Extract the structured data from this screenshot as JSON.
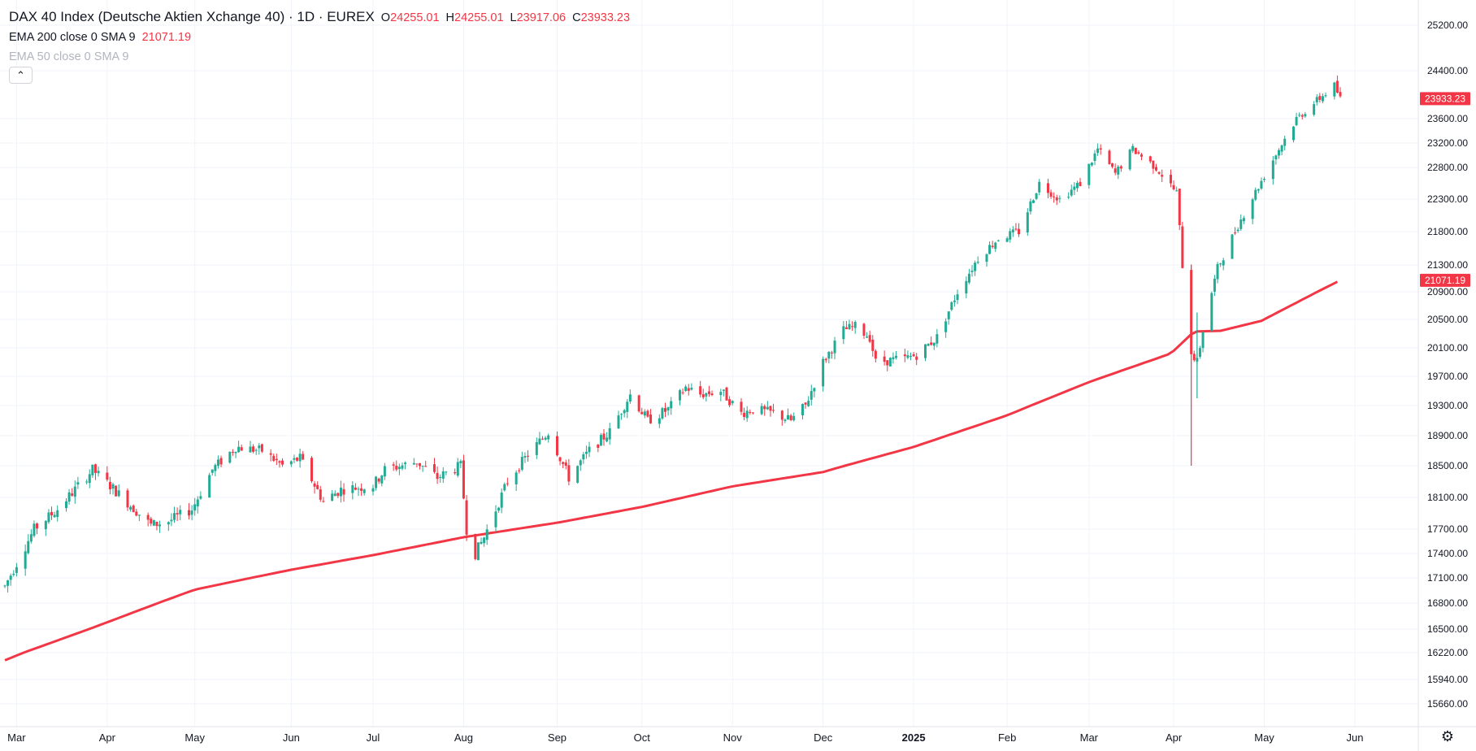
{
  "legend": {
    "title": "DAX 40 Index (Deutsche Aktien Xchange 40) · 1D · EUREX",
    "open_key": "O",
    "open": "24255.01",
    "high_key": "H",
    "high": "24255.01",
    "low_key": "L",
    "low": "23917.06",
    "close_key": "C",
    "close": "23933.23",
    "ema200_label": "EMA 200 close 0 SMA 9",
    "ema200_value": "21071.19",
    "ema50_label": "EMA 50 close 0 SMA 9",
    "collapse_icon": "chevron-up-icon"
  },
  "colors": {
    "up": "#22ab94",
    "down": "#f23645",
    "ema": "#f23645",
    "grid": "#f0f3fa",
    "text": "#131722"
  },
  "settings_icon": "gear-icon",
  "chart_data": {
    "type": "candlestick",
    "title": "DAX 40 Index (Deutsche Aktien Xchange 40) · 1D · EUREX",
    "ylim": [
      15400,
      25400
    ],
    "y_ticks": [
      "25200.00",
      "24400.00",
      "23600.00",
      "23200.00",
      "22800.00",
      "22300.00",
      "21800.00",
      "21300.00",
      "20900.00",
      "20500.00",
      "20100.00",
      "19700.00",
      "19300.00",
      "18900.00",
      "18500.00",
      "18100.00",
      "17700.00",
      "17400.00",
      "17100.00",
      "16800.00",
      "16500.00",
      "16220.00",
      "15940.00",
      "15660.00"
    ],
    "x_ticks": [
      "Mar",
      "Apr",
      "May",
      "Jun",
      "Jul",
      "Aug",
      "Sep",
      "Oct",
      "Nov",
      "Dec",
      "2025",
      "Feb",
      "Mar",
      "Apr",
      "May",
      "Jun"
    ],
    "price_badges": [
      {
        "label": "23933.23",
        "value": 23933.23
      },
      {
        "label": "21071.19",
        "value": 21071.19
      }
    ],
    "grid": true,
    "price_keyframes": [
      {
        "date": "2024-02-26",
        "value": 17000
      },
      {
        "date": "2024-03-07",
        "value": 17700
      },
      {
        "date": "2024-03-15",
        "value": 17950
      },
      {
        "date": "2024-03-27",
        "value": 18450
      },
      {
        "date": "2024-04-02",
        "value": 18250
      },
      {
        "date": "2024-04-16",
        "value": 17750
      },
      {
        "date": "2024-04-22",
        "value": 17800
      },
      {
        "date": "2024-04-30",
        "value": 17950
      },
      {
        "date": "2024-05-07",
        "value": 18450
      },
      {
        "date": "2024-05-15",
        "value": 18750
      },
      {
        "date": "2024-05-24",
        "value": 18700
      },
      {
        "date": "2024-05-31",
        "value": 18500
      },
      {
        "date": "2024-06-06",
        "value": 18600
      },
      {
        "date": "2024-06-14",
        "value": 18050
      },
      {
        "date": "2024-06-20",
        "value": 18200
      },
      {
        "date": "2024-07-01",
        "value": 18250
      },
      {
        "date": "2024-07-05",
        "value": 18450
      },
      {
        "date": "2024-07-16",
        "value": 18550
      },
      {
        "date": "2024-07-23",
        "value": 18350
      },
      {
        "date": "2024-07-31",
        "value": 18500
      },
      {
        "date": "2024-08-02",
        "value": 17700
      },
      {
        "date": "2024-08-05",
        "value": 17400
      },
      {
        "date": "2024-08-08",
        "value": 17600
      },
      {
        "date": "2024-08-16",
        "value": 18300
      },
      {
        "date": "2024-08-23",
        "value": 18650
      },
      {
        "date": "2024-08-30",
        "value": 18950
      },
      {
        "date": "2024-09-06",
        "value": 18350
      },
      {
        "date": "2024-09-13",
        "value": 18700
      },
      {
        "date": "2024-09-20",
        "value": 18950
      },
      {
        "date": "2024-09-27",
        "value": 19450
      },
      {
        "date": "2024-10-03",
        "value": 19100
      },
      {
        "date": "2024-10-10",
        "value": 19250
      },
      {
        "date": "2024-10-16",
        "value": 19550
      },
      {
        "date": "2024-10-21",
        "value": 19450
      },
      {
        "date": "2024-10-28",
        "value": 19500
      },
      {
        "date": "2024-11-04",
        "value": 19200
      },
      {
        "date": "2024-11-08",
        "value": 19250
      },
      {
        "date": "2024-11-15",
        "value": 19200
      },
      {
        "date": "2024-11-21",
        "value": 19100
      },
      {
        "date": "2024-11-26",
        "value": 19300
      },
      {
        "date": "2024-12-02",
        "value": 19900
      },
      {
        "date": "2024-12-09",
        "value": 20350
      },
      {
        "date": "2024-12-13",
        "value": 20400
      },
      {
        "date": "2024-12-18",
        "value": 20250
      },
      {
        "date": "2024-12-20",
        "value": 19900
      },
      {
        "date": "2024-12-30",
        "value": 19950
      },
      {
        "date": "2025-01-03",
        "value": 20000
      },
      {
        "date": "2025-01-10",
        "value": 20250
      },
      {
        "date": "2025-01-17",
        "value": 20900
      },
      {
        "date": "2025-01-24",
        "value": 21400
      },
      {
        "date": "2025-01-31",
        "value": 21700
      },
      {
        "date": "2025-02-07",
        "value": 21800
      },
      {
        "date": "2025-02-14",
        "value": 22550
      },
      {
        "date": "2025-02-21",
        "value": 22300
      },
      {
        "date": "2025-02-28",
        "value": 22550
      },
      {
        "date": "2025-03-06",
        "value": 23100
      },
      {
        "date": "2025-03-12",
        "value": 22700
      },
      {
        "date": "2025-03-18",
        "value": 23100
      },
      {
        "date": "2025-03-26",
        "value": 22800
      },
      {
        "date": "2025-04-02",
        "value": 22400
      },
      {
        "date": "2025-04-04",
        "value": 21300
      },
      {
        "date": "2025-04-07",
        "value": 20050
      },
      {
        "date": "2025-04-09",
        "value": 19900
      },
      {
        "date": "2025-04-11",
        "value": 20350
      },
      {
        "date": "2025-04-16",
        "value": 21250
      },
      {
        "date": "2025-04-23",
        "value": 21900
      },
      {
        "date": "2025-04-30",
        "value": 22500
      },
      {
        "date": "2025-05-07",
        "value": 23100
      },
      {
        "date": "2025-05-13",
        "value": 23600
      },
      {
        "date": "2025-05-20",
        "value": 23900
      },
      {
        "date": "2025-05-26",
        "value": 24150
      },
      {
        "date": "2025-05-28",
        "value": 23933.23
      }
    ],
    "ema200_keyframes": [
      {
        "date": "2024-02-26",
        "value": 16140
      },
      {
        "date": "2024-03-29",
        "value": 16540
      },
      {
        "date": "2024-05-01",
        "value": 16960
      },
      {
        "date": "2024-06-03",
        "value": 17200
      },
      {
        "date": "2024-07-01",
        "value": 17380
      },
      {
        "date": "2024-08-01",
        "value": 17600
      },
      {
        "date": "2024-09-02",
        "value": 17780
      },
      {
        "date": "2024-10-01",
        "value": 17980
      },
      {
        "date": "2024-11-01",
        "value": 18240
      },
      {
        "date": "2024-12-02",
        "value": 18420
      },
      {
        "date": "2025-01-02",
        "value": 18750
      },
      {
        "date": "2025-02-03",
        "value": 19170
      },
      {
        "date": "2025-03-03",
        "value": 19620
      },
      {
        "date": "2025-03-31",
        "value": 20020
      },
      {
        "date": "2025-04-08",
        "value": 20330
      },
      {
        "date": "2025-04-17",
        "value": 20340
      },
      {
        "date": "2025-05-01",
        "value": 20480
      },
      {
        "date": "2025-05-28",
        "value": 21071.19
      }
    ]
  }
}
